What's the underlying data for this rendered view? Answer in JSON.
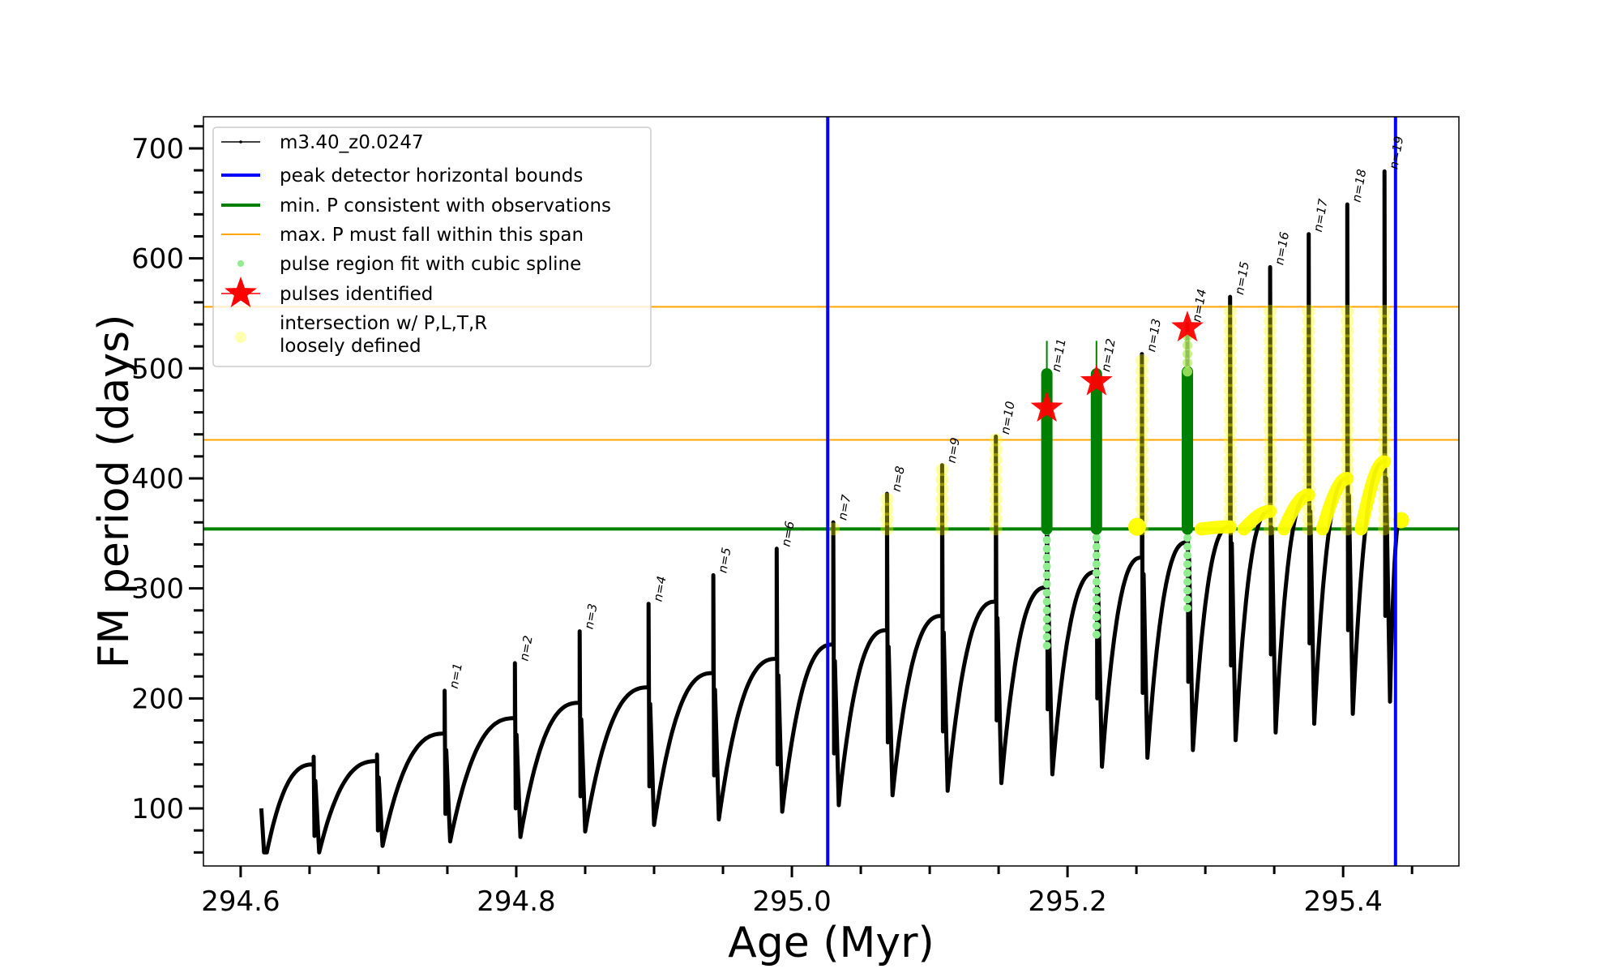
{
  "chart_data": {
    "type": "line",
    "title": "",
    "xlabel": "Age (Myr)",
    "ylabel": "FM period (days)",
    "xlim": [
      294.573,
      295.484
    ],
    "ylim": [
      47.7,
      728.7
    ],
    "grid": false,
    "legend_placement": "upper-left",
    "x_ticks": [
      {
        "value": 294.6,
        "label": "294.6"
      },
      {
        "value": 294.8,
        "label": "294.8"
      },
      {
        "value": 295.0,
        "label": "295.0"
      },
      {
        "value": 295.2,
        "label": "295.2"
      },
      {
        "value": 295.4,
        "label": "295.4"
      }
    ],
    "x_minor_step": 0.05,
    "y_ticks": [
      {
        "value": 100,
        "label": "100"
      },
      {
        "value": 200,
        "label": "200"
      },
      {
        "value": 300,
        "label": "300"
      },
      {
        "value": 400,
        "label": "400"
      },
      {
        "value": 500,
        "label": "500"
      },
      {
        "value": 600,
        "label": "600"
      },
      {
        "value": 700,
        "label": "700"
      }
    ],
    "y_minor_step": 20,
    "colors": {
      "model": "#000000",
      "peak_bounds": "#0000ff",
      "min_p": "#008000",
      "max_p_span": "#ffa500",
      "spline": "#90ee90",
      "spline_dark": "#008000",
      "stars": "#ff0000",
      "intersection": "#ffff00"
    },
    "legend": [
      {
        "key": "model",
        "label": "m3.40_z0.0247",
        "marker": "line-dot"
      },
      {
        "key": "peak_bounds",
        "label": "peak detector horizontal bounds",
        "marker": "thick-line"
      },
      {
        "key": "min_p",
        "label": "min. P consistent with observations",
        "marker": "thick-line"
      },
      {
        "key": "max_p_span",
        "label": "max. P must fall within this span",
        "marker": "thin-line"
      },
      {
        "key": "spline",
        "label": "pulse region fit with cubic spline",
        "marker": "dot"
      },
      {
        "key": "stars",
        "label": "pulses identified",
        "marker": "star"
      },
      {
        "key": "intersection",
        "label": [
          "intersection w/ P,L,T,R",
          "loosely defined"
        ],
        "marker": "big-dot"
      }
    ],
    "vertical_lines": [
      {
        "name": "peak-bound-left",
        "x": 295.026
      },
      {
        "name": "peak-bound-right",
        "x": 295.438
      }
    ],
    "horizontal_lines": [
      {
        "name": "min-p-line",
        "y": 354,
        "series": "min_p"
      },
      {
        "name": "max-p-lower",
        "y": 435,
        "series": "max_p_span"
      },
      {
        "name": "max-p-upper",
        "y": 556,
        "series": "max_p_span"
      }
    ],
    "start": {
      "x": 294.615,
      "top": 100,
      "min": 60
    },
    "pulses": [
      {
        "n": null,
        "x": 294.653,
        "plateau": 140,
        "top": 147,
        "drop": 75,
        "min": 60,
        "label": ""
      },
      {
        "n": null,
        "x": 294.699,
        "plateau": 143,
        "top": 149,
        "drop": 80,
        "min": 66,
        "label": ""
      },
      {
        "n": 1,
        "x": 294.748,
        "plateau": 168,
        "top": 207,
        "drop": 95,
        "min": 70,
        "label": "n=1"
      },
      {
        "n": 2,
        "x": 294.799,
        "plateau": 182,
        "top": 232,
        "drop": 100,
        "min": 74,
        "label": "n=2"
      },
      {
        "n": 3,
        "x": 294.846,
        "plateau": 196,
        "top": 261,
        "drop": 111,
        "min": 79,
        "label": "n=3"
      },
      {
        "n": 4,
        "x": 294.896,
        "plateau": 210,
        "top": 286,
        "drop": 120,
        "min": 85,
        "label": "n=4"
      },
      {
        "n": 5,
        "x": 294.943,
        "plateau": 223,
        "top": 312,
        "drop": 130,
        "min": 90,
        "label": "n=5"
      },
      {
        "n": 6,
        "x": 294.989,
        "plateau": 236,
        "top": 336,
        "drop": 140,
        "min": 97,
        "label": "n=6"
      },
      {
        "n": 7,
        "x": 295.03,
        "plateau": 249,
        "top": 360,
        "drop": 150,
        "min": 103,
        "label": "n=7"
      },
      {
        "n": 8,
        "x": 295.069,
        "plateau": 262,
        "top": 386,
        "drop": 160,
        "min": 112,
        "label": "n=8"
      },
      {
        "n": 9,
        "x": 295.109,
        "plateau": 275,
        "top": 412,
        "drop": 170,
        "min": 116,
        "label": "n=9"
      },
      {
        "n": 10,
        "x": 295.148,
        "plateau": 288,
        "top": 438,
        "drop": 180,
        "min": 123,
        "label": "n=10"
      },
      {
        "n": 11,
        "x": 295.185,
        "plateau": 301,
        "top": 495,
        "spike": 525,
        "drop": 190,
        "min": 131,
        "label": "n=11"
      },
      {
        "n": 12,
        "x": 295.221,
        "plateau": 315,
        "top": 495,
        "spike": 525,
        "drop": 200,
        "min": 138,
        "label": "n=12"
      },
      {
        "n": 13,
        "x": 295.254,
        "plateau": 328,
        "top": 513,
        "drop": 205,
        "min": 146,
        "label": "n=13"
      },
      {
        "n": 14,
        "x": 295.287,
        "plateau": 342,
        "top": 540,
        "drop": 215,
        "min": 153,
        "label": "n=14"
      },
      {
        "n": 15,
        "x": 295.318,
        "plateau": 356,
        "top": 565,
        "drop": 230,
        "min": 162,
        "label": "n=15"
      },
      {
        "n": 16,
        "x": 295.347,
        "plateau": 370,
        "top": 592,
        "drop": 240,
        "min": 169,
        "label": "n=16"
      },
      {
        "n": 17,
        "x": 295.375,
        "plateau": 385,
        "top": 622,
        "drop": 250,
        "min": 177,
        "label": "n=17"
      },
      {
        "n": 18,
        "x": 295.403,
        "plateau": 400,
        "top": 649,
        "drop": 262,
        "min": 186,
        "label": "n=18"
      },
      {
        "n": 19,
        "x": 295.43,
        "plateau": 415,
        "top": 679,
        "drop": 275,
        "min": 197,
        "label": "n=19"
      }
    ],
    "tail": {
      "x": 295.442,
      "y": 365
    },
    "spline_regions": [
      {
        "n": 11,
        "x": 295.185,
        "dark_from": 354,
        "dark_to": 495,
        "light_from": 248,
        "light_to": 354,
        "spike_to": 525
      },
      {
        "n": 12,
        "x": 295.221,
        "dark_from": 354,
        "dark_to": 495,
        "light_from": 258,
        "light_to": 354,
        "spike_to": 525
      },
      {
        "n": 14,
        "x": 295.287,
        "dark_from": 354,
        "dark_to": 497,
        "light_from": 282,
        "light_to": 354,
        "pale_to": 535
      }
    ],
    "stars": [
      {
        "n": 11,
        "x": 295.185,
        "y": 464
      },
      {
        "n": 12,
        "x": 295.221,
        "y": 488
      },
      {
        "n": 14,
        "x": 295.287,
        "y": 537
      }
    ],
    "intersection_columns": [
      {
        "n": 7,
        "x": 295.03,
        "from": 354,
        "to": 362
      },
      {
        "n": 8,
        "x": 295.069,
        "from": 354,
        "to": 386
      },
      {
        "n": 9,
        "x": 295.109,
        "from": 354,
        "to": 412
      },
      {
        "n": 10,
        "x": 295.148,
        "from": 354,
        "to": 438
      },
      {
        "n": 13,
        "x": 295.254,
        "from": 354,
        "to": 513
      },
      {
        "n": 15,
        "x": 295.318,
        "from": 354,
        "to": 556
      },
      {
        "n": 16,
        "x": 295.347,
        "from": 354,
        "to": 556
      },
      {
        "n": 17,
        "x": 295.375,
        "from": 354,
        "to": 556
      },
      {
        "n": 18,
        "x": 295.403,
        "from": 354,
        "to": 556
      },
      {
        "n": 19,
        "x": 295.43,
        "from": 354,
        "to": 556
      }
    ]
  }
}
